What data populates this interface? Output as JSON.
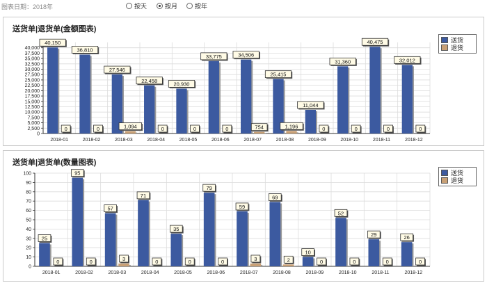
{
  "filter": {
    "date_label": "图表日期：2018年",
    "options": [
      {
        "label": "按天",
        "selected": false
      },
      {
        "label": "按月",
        "selected": true
      },
      {
        "label": "按年",
        "selected": false
      }
    ]
  },
  "colors": {
    "send": "#3c5aa0",
    "return": "#c8a076"
  },
  "chart_data": [
    {
      "type": "bar",
      "title": "送货单|退货单(金额图表)",
      "categories": [
        "2018-01",
        "2018-02",
        "2018-03",
        "2018-04",
        "2018-05",
        "2018-06",
        "2018-07",
        "2018-08",
        "2018-09",
        "2018-10",
        "2018-11",
        "2018-12"
      ],
      "series": [
        {
          "name": "送货",
          "values": [
            40150,
            36810,
            27546,
            22458,
            20930,
            33775,
            34506,
            25415,
            11044,
            31360,
            40475,
            32012
          ]
        },
        {
          "name": "退货",
          "values": [
            0,
            0,
            1094,
            0,
            0,
            0,
            754,
            1196,
            0,
            0,
            0,
            0
          ]
        }
      ],
      "value_labels": [
        [
          "40,150",
          "36,810",
          "27,546",
          "22,458",
          "20,930",
          "33,775",
          "34,506",
          "25,415",
          "11,044",
          "31,360",
          "40,475",
          "32,012"
        ],
        [
          "0",
          "0",
          "1,094",
          "0",
          "0",
          "0",
          "754",
          "1,196",
          "0",
          "0",
          "0",
          "0"
        ]
      ],
      "ylim": [
        0,
        42500
      ],
      "yticks": [
        0,
        2500,
        5000,
        7500,
        10000,
        12500,
        15000,
        17500,
        20000,
        22500,
        25000,
        27500,
        30000,
        32500,
        35000,
        37500,
        40000
      ],
      "ytick_labels": [
        "0",
        "2,500",
        "5,000",
        "7,500",
        "10,000",
        "12,500",
        "15,000",
        "17,500",
        "20,000",
        "22,500",
        "25,000",
        "27,500",
        "30,000",
        "32,500",
        "35,000",
        "37,500",
        "40,000"
      ],
      "legend": "top-right",
      "grid": true
    },
    {
      "type": "bar",
      "title": "送货单|退货单(数量图表)",
      "categories": [
        "2018-01",
        "2018-02",
        "2018-03",
        "2018-04",
        "2018-05",
        "2018-06",
        "2018-07",
        "2018-08",
        "2018-09",
        "2018-10",
        "2018-11",
        "2018-12"
      ],
      "series": [
        {
          "name": "送货",
          "values": [
            25,
            95,
            57,
            71,
            35,
            79,
            59,
            69,
            10,
            52,
            29,
            26
          ]
        },
        {
          "name": "退货",
          "values": [
            0,
            0,
            3,
            0,
            0,
            0,
            3,
            2,
            0,
            0,
            0,
            0
          ]
        }
      ],
      "value_labels": [
        [
          "25",
          "95",
          "57",
          "71",
          "35",
          "79",
          "59",
          "69",
          "10",
          "52",
          "29",
          "26"
        ],
        [
          "0",
          "0",
          "3",
          "0",
          "0",
          "0",
          "3",
          "2",
          "0",
          "0",
          "0",
          "0"
        ]
      ],
      "ylim": [
        0,
        100
      ],
      "yticks": [
        0,
        10,
        20,
        30,
        40,
        50,
        60,
        70,
        80,
        90,
        100
      ],
      "ytick_labels": [
        "0",
        "10",
        "20",
        "30",
        "40",
        "50",
        "60",
        "70",
        "80",
        "90",
        "100"
      ],
      "legend": "top-right",
      "grid": true
    }
  ]
}
